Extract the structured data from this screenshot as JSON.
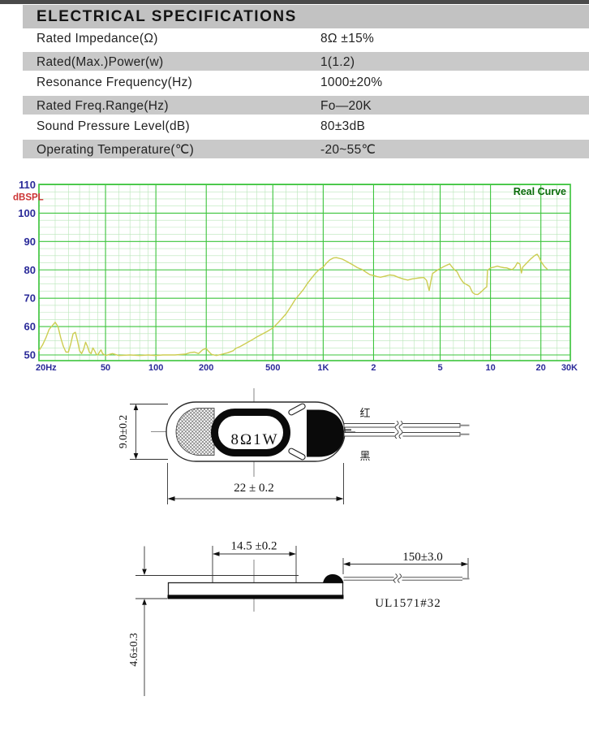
{
  "spec_table": {
    "title": "ELECTRICAL SPECIFICATIONS",
    "rows": [
      {
        "label": "Rated Impedance(Ω)",
        "value": "8Ω ±15%"
      },
      {
        "label": "Rated(Max.)Power(w)",
        "value": "1(1.2)"
      },
      {
        "label": "Resonance Frequency(Hz)",
        "value": "1000±20%"
      },
      {
        "label": "Rated Freq.Range(Hz)",
        "value": "Fo—20K"
      },
      {
        "label": "Sound Pressure Level(dB)",
        "value": "80±3dB"
      },
      {
        "label": "Operating Temperature(℃)",
        "value": "-20~55℃"
      }
    ]
  },
  "chart_data": {
    "type": "line",
    "title": "Real Curve",
    "ylabel": "dBSPL",
    "xlabel": "",
    "x_scale": "log",
    "xlim": [
      20,
      30000
    ],
    "ylim": [
      50,
      110
    ],
    "grid": true,
    "legend_position": "top-right",
    "y_ticks": [
      110,
      100,
      90,
      80,
      70,
      60,
      50
    ],
    "y_minor_step": 2.5,
    "x_ticks": [
      {
        "label": "20Hz",
        "f": 20
      },
      {
        "label": "50",
        "f": 50
      },
      {
        "label": "100",
        "f": 100
      },
      {
        "label": "200",
        "f": 200
      },
      {
        "label": "500",
        "f": 500
      },
      {
        "label": "1K",
        "f": 1000
      },
      {
        "label": "2",
        "f": 2000
      },
      {
        "label": "5",
        "f": 5000
      },
      {
        "label": "10",
        "f": 10000
      },
      {
        "label": "20",
        "f": 20000
      },
      {
        "label": "30K",
        "f": 30000
      }
    ],
    "x_minor_gridlines": [
      25,
      30,
      35,
      40,
      45,
      60,
      70,
      80,
      90,
      150,
      250,
      300,
      350,
      400,
      450,
      600,
      700,
      800,
      900,
      1500,
      2500,
      3000,
      3500,
      4000,
      4500,
      6000,
      7000,
      8000,
      9000,
      15000,
      25000
    ],
    "series": [
      {
        "name": "Real Curve",
        "points": [
          [
            20,
            51.5
          ],
          [
            21,
            53.5
          ],
          [
            22,
            56
          ],
          [
            23,
            59
          ],
          [
            25,
            61.5
          ],
          [
            26,
            60
          ],
          [
            27,
            56
          ],
          [
            28,
            53
          ],
          [
            29,
            51
          ],
          [
            30,
            51
          ],
          [
            31,
            54
          ],
          [
            32,
            57.5
          ],
          [
            33,
            58
          ],
          [
            34,
            55
          ],
          [
            35,
            51.5
          ],
          [
            36,
            50.5
          ],
          [
            37,
            52
          ],
          [
            38,
            54.5
          ],
          [
            39,
            53
          ],
          [
            40,
            51
          ],
          [
            41,
            50.5
          ],
          [
            42,
            52.5
          ],
          [
            43,
            51.5
          ],
          [
            44,
            50.3
          ],
          [
            45,
            50
          ],
          [
            46,
            51
          ],
          [
            47,
            51.8
          ],
          [
            48,
            50.5
          ],
          [
            50,
            49.8
          ],
          [
            55,
            50.5
          ],
          [
            60,
            49.8
          ],
          [
            70,
            50
          ],
          [
            80,
            49.8
          ],
          [
            90,
            50
          ],
          [
            100,
            49.8
          ],
          [
            110,
            50
          ],
          [
            130,
            50
          ],
          [
            150,
            50.3
          ],
          [
            160,
            50.8
          ],
          [
            170,
            51
          ],
          [
            180,
            50.5
          ],
          [
            190,
            51.8
          ],
          [
            200,
            52.3
          ],
          [
            205,
            51.5
          ],
          [
            215,
            50.2
          ],
          [
            230,
            49.8
          ],
          [
            250,
            50.3
          ],
          [
            270,
            50.8
          ],
          [
            290,
            51.5
          ],
          [
            300,
            52.3
          ],
          [
            320,
            53
          ],
          [
            350,
            54.3
          ],
          [
            380,
            55.5
          ],
          [
            400,
            56.3
          ],
          [
            430,
            57.3
          ],
          [
            460,
            58.2
          ],
          [
            500,
            59.5
          ],
          [
            530,
            61
          ],
          [
            560,
            62.5
          ],
          [
            600,
            64.5
          ],
          [
            640,
            67
          ],
          [
            680,
            69.5
          ],
          [
            720,
            71.3
          ],
          [
            760,
            73
          ],
          [
            800,
            75
          ],
          [
            850,
            77
          ],
          [
            900,
            78.8
          ],
          [
            950,
            80.2
          ],
          [
            1000,
            81
          ],
          [
            1050,
            82.5
          ],
          [
            1100,
            83.6
          ],
          [
            1150,
            84.2
          ],
          [
            1200,
            84.3
          ],
          [
            1300,
            83.8
          ],
          [
            1400,
            82.8
          ],
          [
            1500,
            81.8
          ],
          [
            1600,
            80.8
          ],
          [
            1700,
            80.2
          ],
          [
            1800,
            79.2
          ],
          [
            1900,
            78.3
          ],
          [
            2000,
            78
          ],
          [
            2100,
            77.6
          ],
          [
            2200,
            77.4
          ],
          [
            2350,
            77.8
          ],
          [
            2500,
            78.2
          ],
          [
            2650,
            78
          ],
          [
            2800,
            77.4
          ],
          [
            3000,
            76.8
          ],
          [
            3200,
            76.4
          ],
          [
            3400,
            76.8
          ],
          [
            3600,
            77
          ],
          [
            3800,
            77.2
          ],
          [
            4000,
            77.3
          ],
          [
            4150,
            76.3
          ],
          [
            4300,
            72.7
          ],
          [
            4400,
            76
          ],
          [
            4500,
            78.7
          ],
          [
            4700,
            79.5
          ],
          [
            4900,
            80.2
          ],
          [
            5200,
            81
          ],
          [
            5500,
            81.7
          ],
          [
            5700,
            82.1
          ],
          [
            5900,
            81
          ],
          [
            6100,
            80
          ],
          [
            6300,
            79.4
          ],
          [
            6600,
            77
          ],
          [
            6900,
            75.4
          ],
          [
            7200,
            74.8
          ],
          [
            7500,
            74.2
          ],
          [
            7800,
            72
          ],
          [
            8100,
            71.4
          ],
          [
            8400,
            71.3
          ],
          [
            8700,
            72
          ],
          [
            9000,
            72.8
          ],
          [
            9300,
            73.6
          ],
          [
            9500,
            74
          ],
          [
            9600,
            79.8
          ],
          [
            10000,
            80.7
          ],
          [
            10500,
            81
          ],
          [
            11000,
            81.3
          ],
          [
            11500,
            81
          ],
          [
            12000,
            80.8
          ],
          [
            12500,
            80.7
          ],
          [
            13000,
            80.3
          ],
          [
            13500,
            80.1
          ],
          [
            14000,
            81
          ],
          [
            14500,
            82.6
          ],
          [
            15000,
            82
          ],
          [
            15300,
            78.9
          ],
          [
            15600,
            81
          ],
          [
            16500,
            82.5
          ],
          [
            17500,
            84
          ],
          [
            18500,
            85.2
          ],
          [
            19000,
            85.5
          ],
          [
            19500,
            84.5
          ],
          [
            20000,
            83
          ],
          [
            21000,
            81.2
          ],
          [
            21800,
            80.3
          ]
        ]
      }
    ],
    "colors": {
      "grid_major": "#3cc43c",
      "grid_minor": "#b9e6b9",
      "border": "#3cc43c",
      "curve": "#cdcd52",
      "tick_label": "#2a2a99",
      "ylabel": "#cc3333",
      "title": "#0a6b0a"
    }
  },
  "top_view": {
    "impedance_label": "8Ω1W",
    "height_dim": "9.0±0.2",
    "width_dim": "22 ± 0.2",
    "wire_red_label": "红",
    "wire_black_label": "黑"
  },
  "side_view": {
    "cap_width_dim": "14.5 ±0.2",
    "wire_length_dim": "150±3.0",
    "thickness_dim": "4.6±0.3",
    "wire_spec": "UL1571#32"
  }
}
